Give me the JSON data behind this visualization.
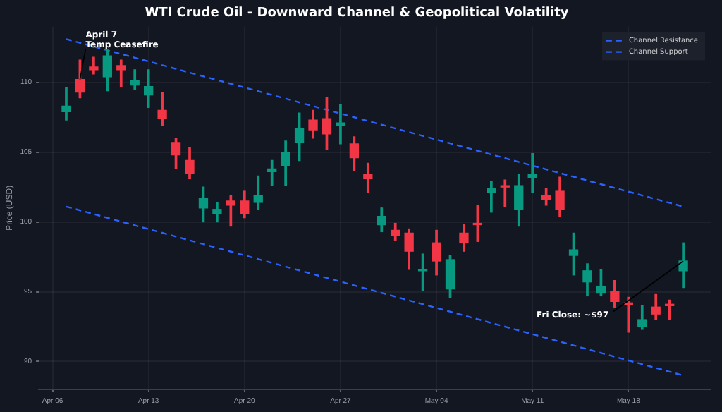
{
  "chart_data": {
    "type": "candlestick",
    "title": "WTI Crude Oil - Downward Channel & Geopolitical Volatility",
    "ylabel": "Price (USD)",
    "x": [
      "--04-07",
      "--04-08",
      "--04-09",
      "--04-10",
      "--04-11",
      "--04-12",
      "--04-13",
      "--04-14",
      "--04-15",
      "--04-16",
      "--04-17",
      "--04-18",
      "--04-19",
      "--04-20",
      "--04-21",
      "--04-22",
      "--04-23",
      "--04-24",
      "--04-25",
      "--04-26",
      "--04-27",
      "--04-28",
      "--04-29",
      "--04-30",
      "--05-01",
      "--05-02",
      "--05-03",
      "--05-04",
      "--05-05",
      "--05-06",
      "--05-07",
      "--05-08",
      "--05-09",
      "--05-10",
      "--05-11",
      "--05-12",
      "--05-13",
      "--05-14",
      "--05-15",
      "--05-16",
      "--05-17",
      "--05-18",
      "--05-19",
      "--05-20",
      "--05-21",
      "--05-22"
    ],
    "ohlc": [
      [
        107.9,
        109.6,
        107.3,
        108.3
      ],
      [
        110.2,
        111.6,
        108.9,
        109.3
      ],
      [
        111.1,
        111.8,
        110.6,
        110.9
      ],
      [
        110.4,
        112.3,
        109.4,
        111.9
      ],
      [
        111.2,
        111.6,
        109.7,
        110.9
      ],
      [
        109.8,
        110.9,
        109.5,
        110.1
      ],
      [
        109.1,
        110.9,
        108.2,
        109.7
      ],
      [
        108.0,
        109.3,
        106.9,
        107.4
      ],
      [
        105.7,
        106.0,
        103.8,
        104.8
      ],
      [
        104.4,
        105.3,
        103.1,
        103.5
      ],
      [
        101.0,
        102.5,
        100.0,
        101.7
      ],
      [
        100.6,
        101.4,
        100.0,
        100.9
      ],
      [
        101.5,
        101.9,
        99.7,
        101.2
      ],
      [
        101.5,
        102.2,
        100.3,
        100.6
      ],
      [
        101.4,
        103.3,
        100.9,
        101.9
      ],
      [
        103.6,
        104.4,
        102.6,
        103.8
      ],
      [
        104.0,
        105.8,
        102.6,
        105.0
      ],
      [
        105.7,
        107.8,
        104.4,
        106.7
      ],
      [
        107.3,
        108.0,
        106.0,
        106.6
      ],
      [
        107.4,
        108.9,
        105.2,
        106.3
      ],
      [
        106.9,
        108.4,
        105.6,
        107.1
      ],
      [
        105.6,
        106.1,
        103.7,
        104.6
      ],
      [
        103.4,
        104.2,
        102.1,
        103.1
      ],
      [
        99.8,
        101.0,
        99.3,
        100.4
      ],
      [
        99.4,
        99.9,
        98.7,
        99.0
      ],
      [
        99.2,
        99.5,
        96.6,
        97.9
      ],
      [
        96.5,
        97.7,
        95.1,
        96.6
      ],
      [
        98.5,
        99.4,
        96.2,
        97.2
      ],
      [
        95.2,
        97.6,
        94.6,
        97.3
      ],
      [
        99.2,
        99.8,
        97.9,
        98.5
      ],
      [
        99.9,
        101.2,
        98.6,
        99.8
      ],
      [
        102.1,
        102.9,
        100.7,
        102.4
      ],
      [
        102.6,
        103.0,
        101.1,
        102.5
      ],
      [
        100.9,
        103.4,
        99.7,
        102.6
      ],
      [
        103.2,
        104.9,
        102.1,
        103.4
      ],
      [
        101.9,
        102.4,
        101.2,
        101.6
      ],
      [
        102.2,
        103.2,
        100.4,
        100.9
      ],
      [
        97.6,
        99.2,
        96.2,
        98.0
      ],
      [
        95.7,
        97.0,
        94.7,
        96.5
      ],
      [
        94.9,
        96.6,
        94.7,
        95.4
      ],
      [
        95.0,
        95.8,
        93.9,
        94.3
      ],
      [
        94.2,
        94.6,
        92.1,
        94.1
      ],
      [
        92.5,
        94.0,
        92.3,
        93.0
      ],
      [
        93.9,
        94.8,
        93.0,
        93.4
      ],
      [
        94.1,
        94.4,
        93.0,
        94.0
      ],
      [
        96.5,
        98.5,
        95.3,
        97.2
      ]
    ],
    "colors": [
      "#089981",
      "#f23645",
      "#f23645",
      "#089981",
      "#f23645",
      "#089981",
      "#089981",
      "#f23645",
      "#f23645",
      "#f23645",
      "#089981",
      "#089981",
      "#f23645",
      "#f23645",
      "#089981",
      "#089981",
      "#089981",
      "#089981",
      "#f23645",
      "#f23645",
      "#089981",
      "#f23645",
      "#f23645",
      "#089981",
      "#f23645",
      "#f23645",
      "#089981",
      "#f23645",
      "#089981",
      "#f23645",
      "#f23645",
      "#089981",
      "#f23645",
      "#089981",
      "#089981",
      "#f23645",
      "#f23645",
      "#089981",
      "#089981",
      "#089981",
      "#f23645",
      "#f23645",
      "#089981",
      "#f23645",
      "#f23645",
      "#089981"
    ],
    "series": [
      {
        "name": "Channel Resistance",
        "type": "line",
        "color": "#2962ff",
        "line_style": "dashed",
        "x": [
          "--04-07",
          "--05-22"
        ],
        "values": [
          113.1,
          101.1
        ]
      },
      {
        "name": "Channel Support",
        "type": "line",
        "color": "#2962ff",
        "line_style": "dashed",
        "x": [
          "--04-07",
          "--05-22"
        ],
        "values": [
          101.1,
          89.0
        ]
      }
    ],
    "xlim": [
      "--04-05",
      "--05-24"
    ],
    "xticks": [
      {
        "value": "--04-06",
        "label": "Apr 06"
      },
      {
        "value": "--04-13",
        "label": "Apr 13"
      },
      {
        "value": "--04-20",
        "label": "Apr 20"
      },
      {
        "value": "--04-27",
        "label": "Apr 27"
      },
      {
        "value": "--05-04",
        "label": "May 04"
      },
      {
        "value": "--05-11",
        "label": "May 11"
      },
      {
        "value": "--05-18",
        "label": "May 18"
      }
    ],
    "ylim": [
      88,
      114
    ],
    "yticks": [
      90,
      95,
      100,
      105,
      110
    ],
    "grid": true,
    "legend": "top right",
    "annotations": [
      {
        "text": "April 7\nTemp Ceasefire",
        "x": "--04-08",
        "y": 110.2
      },
      {
        "text": "Fri Close: ~$97",
        "x": "--05-22",
        "y": 97.2
      }
    ]
  }
}
